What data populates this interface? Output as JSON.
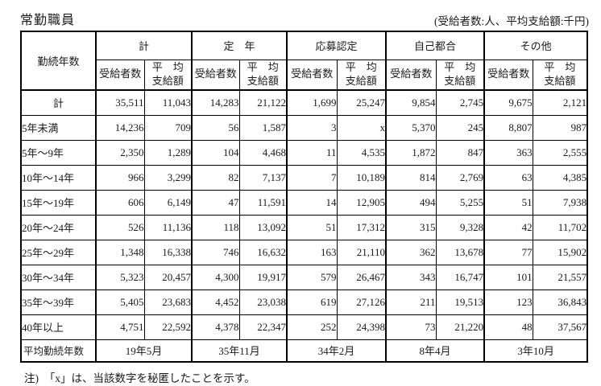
{
  "title": "常勤職員",
  "caption": "(受給者数:人、平均支給額:千円)",
  "note": "注)　「x」は、当該数字を秘匿したことを示す。",
  "table": {
    "corner_header": "勤続年数",
    "groups": [
      "計",
      "定　年",
      "応募認定",
      "自己都合",
      "その他"
    ],
    "subheaders": {
      "count": "受給者数",
      "avg": "平　均\n支給額"
    },
    "rows": [
      {
        "label": "計",
        "center": true,
        "values": [
          "35,511",
          "11,043",
          "14,283",
          "21,122",
          "1,699",
          "25,247",
          "9,854",
          "2,745",
          "9,675",
          "2,121"
        ]
      },
      {
        "label": "5年未満",
        "values": [
          "14,236",
          "709",
          "56",
          "1,587",
          "3",
          "x",
          "5,370",
          "245",
          "8,807",
          "987"
        ]
      },
      {
        "label": "5年～9年",
        "values": [
          "2,350",
          "1,289",
          "104",
          "4,468",
          "11",
          "4,535",
          "1,872",
          "847",
          "363",
          "2,555"
        ]
      },
      {
        "label": "10年～14年",
        "values": [
          "966",
          "3,299",
          "82",
          "7,137",
          "7",
          "10,189",
          "814",
          "2,769",
          "63",
          "4,385"
        ]
      },
      {
        "label": "15年～19年",
        "values": [
          "606",
          "6,149",
          "47",
          "11,591",
          "14",
          "12,905",
          "494",
          "5,255",
          "51",
          "7,938"
        ]
      },
      {
        "label": "20年～24年",
        "values": [
          "526",
          "11,136",
          "118",
          "13,092",
          "51",
          "17,312",
          "315",
          "9,328",
          "42",
          "11,702"
        ]
      },
      {
        "label": "25年～29年",
        "values": [
          "1,348",
          "16,338",
          "746",
          "16,632",
          "163",
          "21,110",
          "362",
          "13,678",
          "77",
          "15,902"
        ]
      },
      {
        "label": "30年～34年",
        "values": [
          "5,323",
          "20,457",
          "4,300",
          "19,917",
          "579",
          "26,467",
          "343",
          "16,747",
          "101",
          "21,557"
        ]
      },
      {
        "label": "35年～39年",
        "values": [
          "5,405",
          "23,683",
          "4,452",
          "23,038",
          "619",
          "27,126",
          "211",
          "19,513",
          "123",
          "36,843"
        ]
      },
      {
        "label": "40年以上",
        "values": [
          "4,751",
          "22,592",
          "4,378",
          "22,347",
          "252",
          "24,398",
          "73",
          "21,220",
          "48",
          "37,567"
        ]
      }
    ],
    "footer": {
      "label": "平均勤続年数",
      "values": [
        "19年5月",
        "35年11月",
        "34年2月",
        "8年4月",
        "3年10月"
      ]
    }
  }
}
